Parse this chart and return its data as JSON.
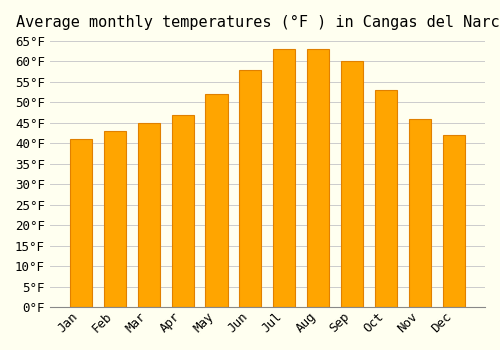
{
  "title": "Average monthly temperatures (°F ) in Cangas del Narcea",
  "months": [
    "Jan",
    "Feb",
    "Mar",
    "Apr",
    "May",
    "Jun",
    "Jul",
    "Aug",
    "Sep",
    "Oct",
    "Nov",
    "Dec"
  ],
  "values": [
    41,
    43,
    45,
    47,
    52,
    58,
    63,
    63,
    60,
    53,
    46,
    42
  ],
  "bar_color": "#FFA500",
  "bar_edge_color": "#E08000",
  "background_color": "#FFFFF0",
  "grid_color": "#CCCCCC",
  "ylim": [
    0,
    65
  ],
  "ytick_step": 5,
  "title_fontsize": 11,
  "tick_fontsize": 9,
  "tick_font_family": "monospace"
}
